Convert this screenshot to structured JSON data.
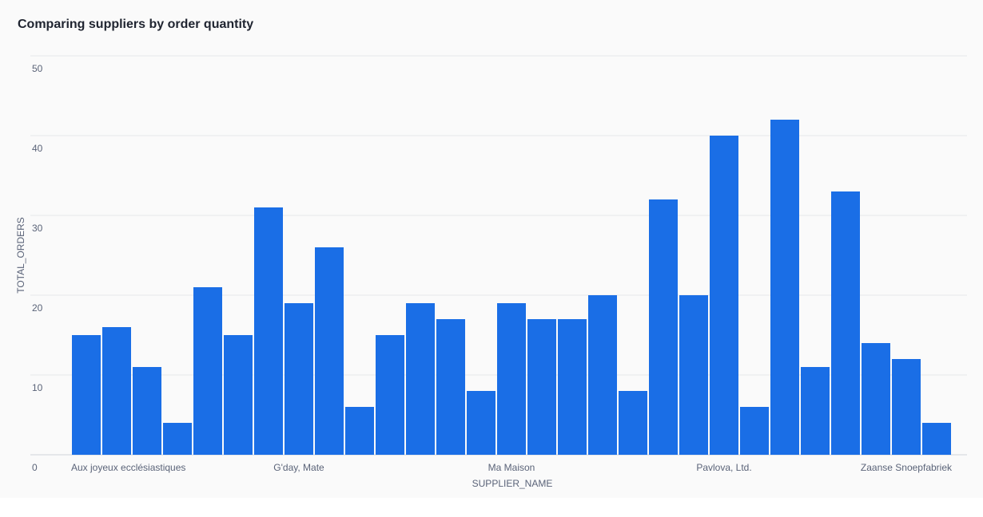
{
  "chart_data": {
    "type": "bar",
    "title": "Comparing suppliers by order quantity",
    "x_label": "SUPPLIER_NAME",
    "y_label": "TOTAL_ORDERS",
    "categories": [
      "Aux joyeux ecclésiastiques",
      null,
      null,
      null,
      null,
      null,
      null,
      "G'day, Mate",
      null,
      null,
      null,
      null,
      null,
      null,
      "Ma Maison",
      null,
      null,
      null,
      null,
      null,
      null,
      "Pavlova, Ltd.",
      null,
      null,
      null,
      null,
      null,
      null,
      "Zaanse Snoepfabriek"
    ],
    "values": [
      15,
      16,
      11,
      4,
      21,
      15,
      31,
      19,
      26,
      6,
      15,
      19,
      17,
      8,
      19,
      17,
      17,
      20,
      8,
      32,
      20,
      40,
      6,
      42,
      11,
      33,
      14,
      12,
      4
    ],
    "color": "#1a6ee6",
    "ylim": [
      0,
      50
    ],
    "yticks": [
      0,
      10,
      20,
      30,
      40,
      50
    ],
    "grid": true
  }
}
